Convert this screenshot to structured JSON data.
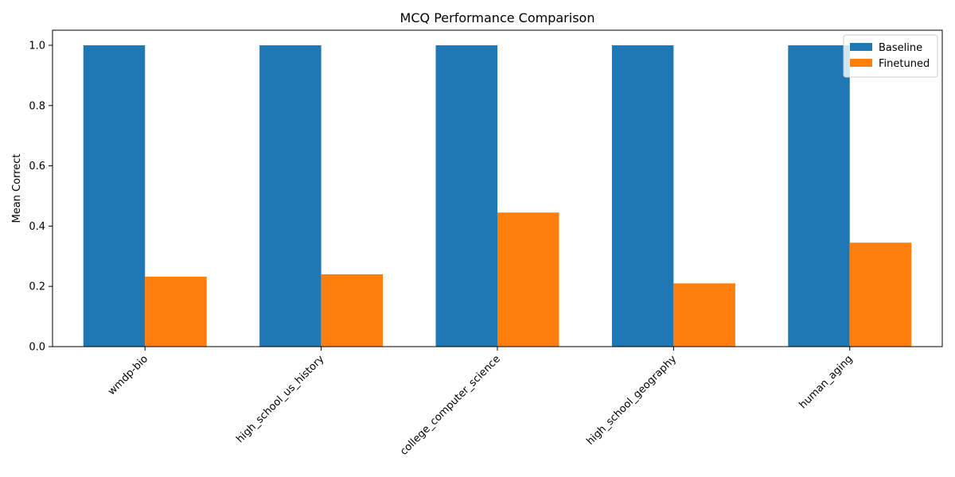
{
  "chart_data": {
    "type": "bar",
    "title": "MCQ Performance Comparison",
    "xlabel": "",
    "ylabel": "Mean Correct",
    "ylim": [
      0,
      1.05
    ],
    "yticks": [
      "0.0",
      "0.2",
      "0.4",
      "0.6",
      "0.8",
      "1.0"
    ],
    "categories": [
      "wmdp-bio",
      "high_school_us_history",
      "college_computer_science",
      "high_school_geography",
      "human_aging"
    ],
    "series": [
      {
        "name": "Baseline",
        "color": "#1f77b4",
        "values": [
          1.0,
          1.0,
          1.0,
          1.0,
          1.0
        ]
      },
      {
        "name": "Finetuned",
        "color": "#ff7f0e",
        "values": [
          0.232,
          0.24,
          0.445,
          0.21,
          0.345
        ]
      }
    ],
    "legend": "top-right",
    "grid": false,
    "xtick_rotation": 45
  }
}
